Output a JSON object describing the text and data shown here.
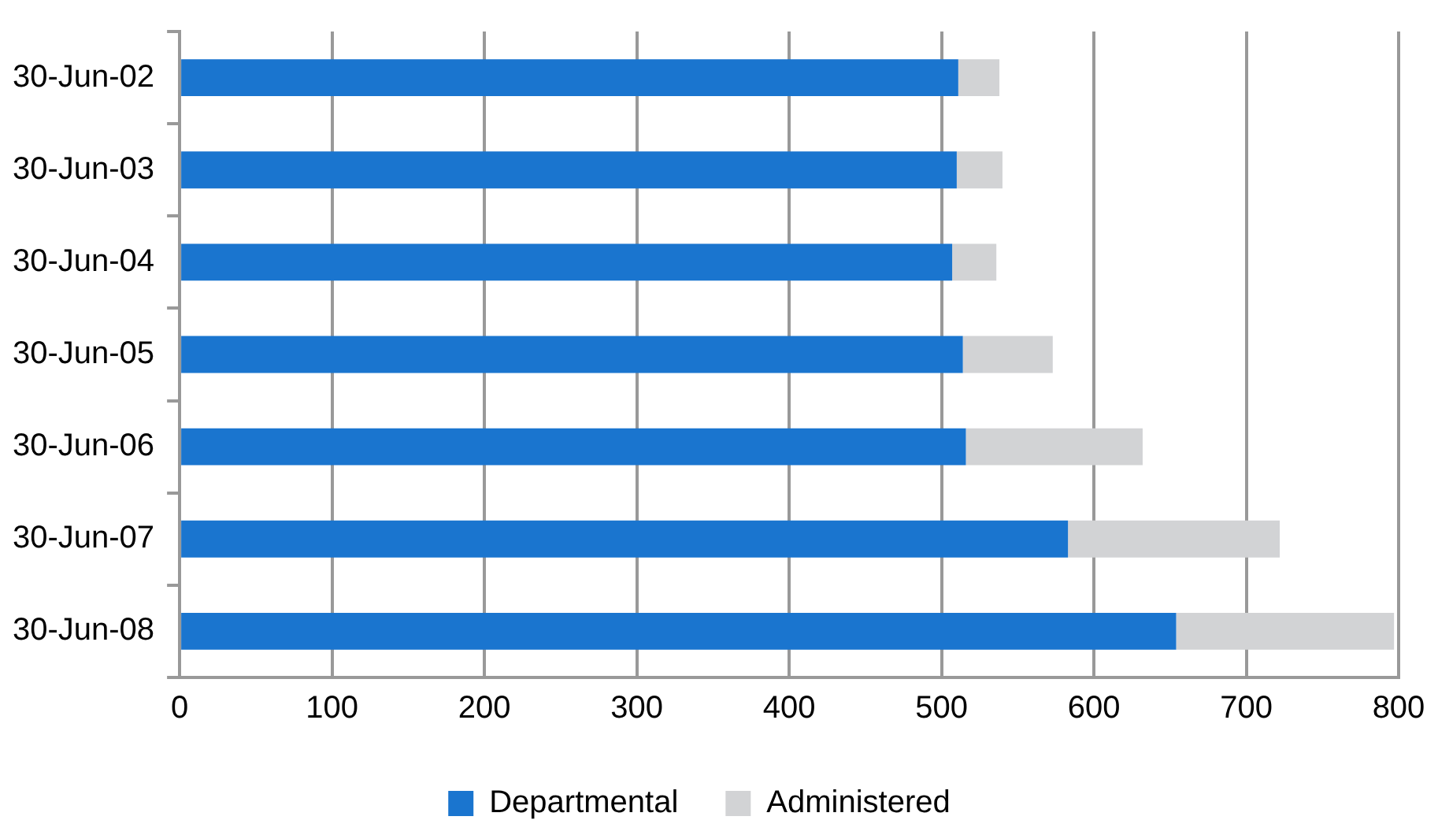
{
  "chart_data": {
    "type": "bar",
    "orientation": "horizontal",
    "stacked": true,
    "categories": [
      "30-Jun-02",
      "30-Jun-03",
      "30-Jun-04",
      "30-Jun-05",
      "30-Jun-06",
      "30-Jun-07",
      "30-Jun-08"
    ],
    "series": [
      {
        "name": "Departmental",
        "color": "#1a75cf",
        "values": [
          511,
          510,
          507,
          514,
          516,
          583,
          654
        ]
      },
      {
        "name": "Administered",
        "color": "#d2d3d5",
        "values": [
          27,
          30,
          29,
          59,
          116,
          139,
          143
        ]
      }
    ],
    "xlim": [
      0,
      800
    ],
    "xticks": [
      0,
      100,
      200,
      300,
      400,
      500,
      600,
      700,
      800
    ],
    "grid": "x",
    "legend": "bottom"
  }
}
